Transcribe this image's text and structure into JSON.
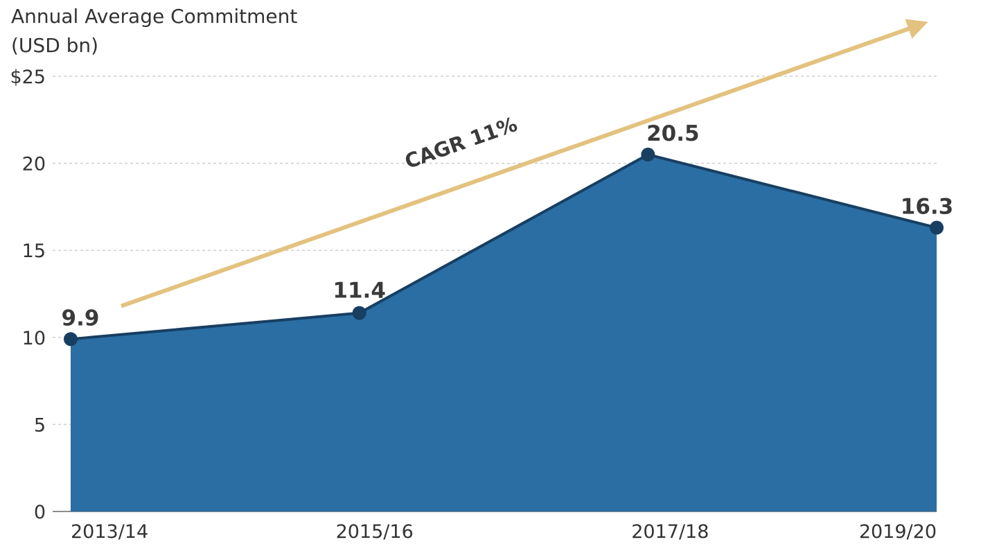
{
  "chart_data": {
    "type": "area",
    "ylabel_lines": [
      "Annual Average Commitment",
      "(USD bn)"
    ],
    "categories": [
      "2013/14",
      "2015/16",
      "2017/18",
      "2019/20"
    ],
    "x_positions": [
      0,
      2,
      4,
      6
    ],
    "values": [
      9.9,
      11.4,
      20.5,
      16.3
    ],
    "data_labels": [
      "9.9",
      "11.4",
      "20.5",
      "16.3"
    ],
    "ylim": [
      0,
      25
    ],
    "yticks": [
      {
        "value": 0,
        "label": "0"
      },
      {
        "value": 5,
        "label": "5"
      },
      {
        "value": 10,
        "label": "10"
      },
      {
        "value": 15,
        "label": "15"
      },
      {
        "value": 20,
        "label": "20"
      },
      {
        "value": 25,
        "label": "$25"
      }
    ],
    "grid": true,
    "annotation": {
      "text": "CAGR 11%",
      "arrow_start": {
        "x": 0.35,
        "y": 11.8
      },
      "arrow_end": {
        "x": 5.9,
        "y": 28
      }
    },
    "colors": {
      "area_fill": "#2a6ea3",
      "line": "#173f62",
      "marker": "#173f62",
      "arrow": "#e3c27f",
      "grid": "#cfcfcf",
      "text": "#333333"
    }
  }
}
